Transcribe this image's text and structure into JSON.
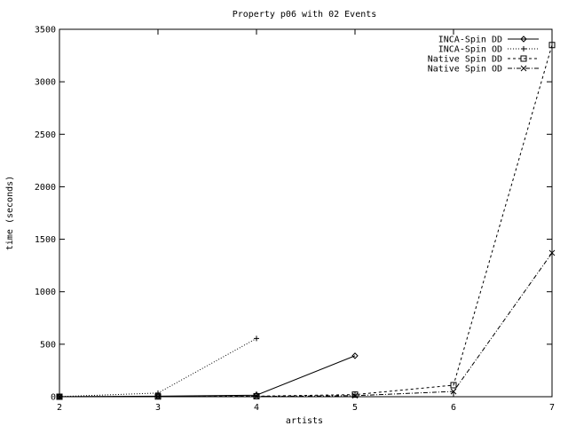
{
  "chart_data": {
    "type": "line",
    "title": "Property p06 with 02 Events",
    "xlabel": "artists",
    "ylabel": "time (seconds)",
    "xlim": [
      2,
      7
    ],
    "ylim": [
      0,
      3500
    ],
    "xticks": [
      2,
      3,
      4,
      5,
      6,
      7
    ],
    "yticks": [
      0,
      500,
      1000,
      1500,
      2000,
      2500,
      3000,
      3500
    ],
    "grid": false,
    "legend_position": "top-right",
    "series": [
      {
        "name": "INCA-Spin DD",
        "marker": "diamond",
        "dash": "solid",
        "points": [
          [
            2,
            1
          ],
          [
            3,
            5
          ],
          [
            4,
            15
          ],
          [
            5,
            390
          ]
        ]
      },
      {
        "name": "INCA-Spin OD",
        "marker": "plus",
        "dash": "dotted",
        "points": [
          [
            2,
            1
          ],
          [
            3,
            35
          ],
          [
            4,
            555
          ]
        ]
      },
      {
        "name": "Native Spin DD",
        "marker": "square",
        "dash": "dashed",
        "points": [
          [
            2,
            0
          ],
          [
            3,
            2
          ],
          [
            4,
            5
          ],
          [
            5,
            20
          ],
          [
            6,
            110
          ],
          [
            7,
            3350
          ]
        ]
      },
      {
        "name": "Native Spin OD",
        "marker": "cross",
        "dash": "dashdot",
        "points": [
          [
            2,
            0
          ],
          [
            3,
            1
          ],
          [
            4,
            3
          ],
          [
            5,
            10
          ],
          [
            6,
            50
          ],
          [
            7,
            1370
          ]
        ]
      }
    ]
  }
}
